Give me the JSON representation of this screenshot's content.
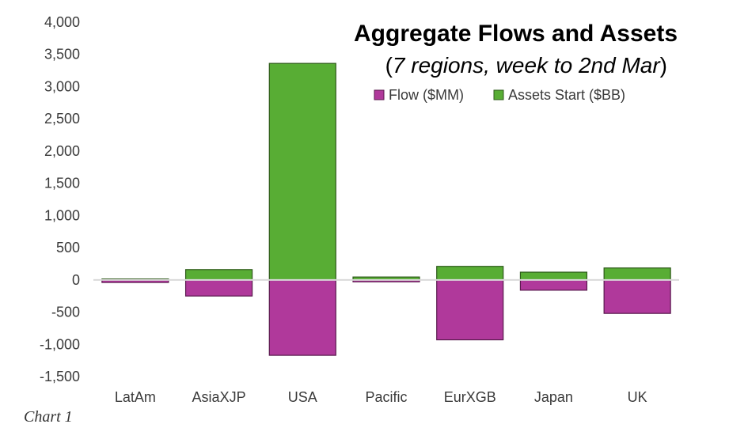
{
  "caption": "Chart 1",
  "chart_data": {
    "type": "bar",
    "title": "Aggregate Flows and Assets",
    "subtitle_open": "(",
    "subtitle_text": "7 regions, week to 2nd Mar",
    "subtitle_close": ")",
    "categories": [
      "LatAm",
      "AsiaXJP",
      "USA",
      "Pacific",
      "EurXGB",
      "Japan",
      "UK"
    ],
    "series": [
      {
        "name": "Flow ($MM)",
        "color": "#b0399b",
        "values": [
          -40,
          -250,
          -1170,
          -30,
          -930,
          -160,
          -520
        ]
      },
      {
        "name": "Assets Start ($BB)",
        "color": "#58ad34",
        "values": [
          15,
          160,
          3360,
          45,
          210,
          120,
          185
        ]
      }
    ],
    "ylim": [
      -1500,
      4000
    ],
    "yticks": [
      "4,000",
      "3,500",
      "3,000",
      "2,500",
      "2,000",
      "1,500",
      "1,000",
      "500",
      "0",
      "-500",
      "-1,000",
      "-1,500"
    ],
    "ytick_values": [
      4000,
      3500,
      3000,
      2500,
      2000,
      1500,
      1000,
      500,
      0,
      -500,
      -1000,
      -1500
    ],
    "legend_position": "top-right",
    "grid": false
  }
}
